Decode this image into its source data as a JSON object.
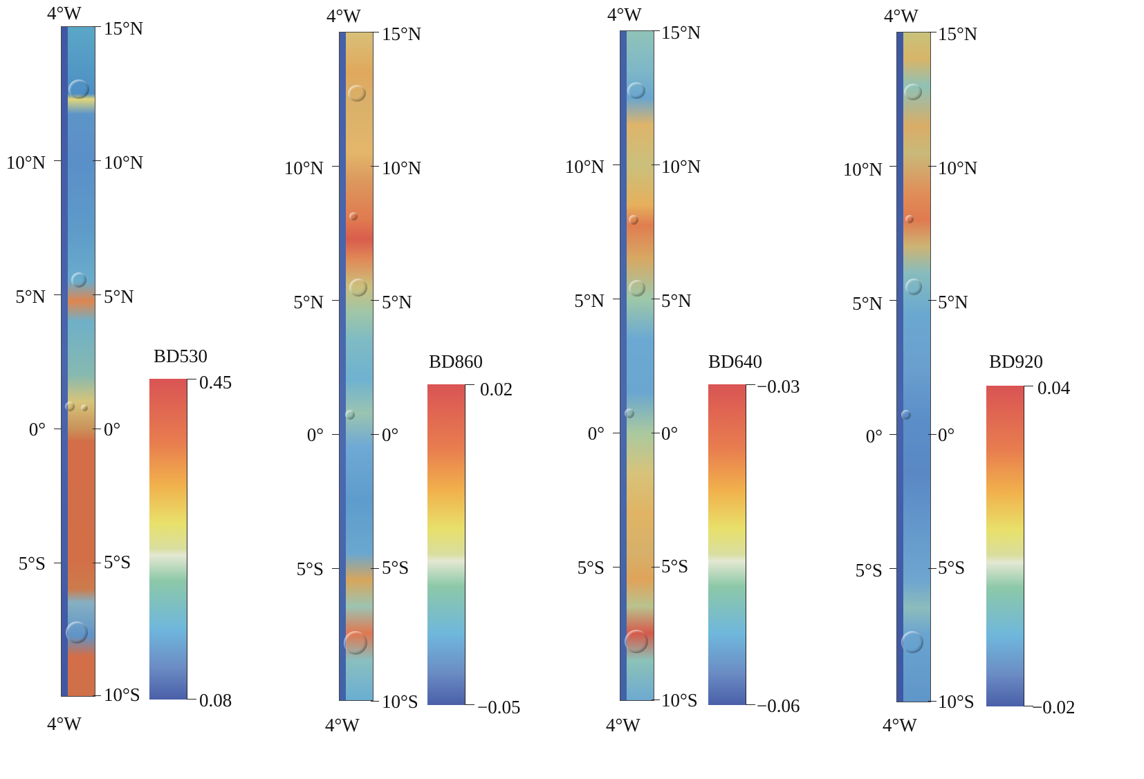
{
  "lon_label": "4°W",
  "lat_labels": [
    "15°N",
    "10°N",
    "5°N",
    "0°",
    "5°S",
    "10°S"
  ],
  "colors": {
    "scale": [
      "#4a5fa8",
      "#6b8cc4",
      "#6fb7dc",
      "#8cc8a8",
      "#dde2b8",
      "#e8e06a",
      "#f1b04c",
      "#e87d4f",
      "#d95454"
    ]
  },
  "panels": [
    {
      "name": "BD530",
      "colorbar": {
        "title": "BD530",
        "max": "0.45",
        "min": "0.08"
      },
      "left_labels": [
        "10°N",
        "5°N",
        "0°",
        "5°S"
      ],
      "right_labels": [
        "15°N",
        "10°N",
        "5°N",
        "0°",
        "5°S",
        "10°S"
      ]
    },
    {
      "name": "BD860",
      "colorbar": {
        "title": "BD860",
        "max": "0.02",
        "min": "−0.05"
      },
      "left_labels": [
        "10°N",
        "5°N",
        "0°",
        "5°S"
      ],
      "right_labels": [
        "15°N",
        "10°N",
        "5°N",
        "0°",
        "5°S",
        "10°S"
      ]
    },
    {
      "name": "BD640",
      "colorbar": {
        "title": "BD640",
        "max": "−0.03",
        "min": "−0.06"
      },
      "left_labels": [
        "10°N",
        "5°N",
        "0°",
        "5°S"
      ],
      "right_labels": [
        "15°N",
        "10°N",
        "5°N",
        "0°",
        "5°S",
        "10°S"
      ]
    },
    {
      "name": "BD920",
      "colorbar": {
        "title": "BD920",
        "max": "0.04",
        "min": "−0.02"
      },
      "left_labels": [
        "10°N",
        "5°N",
        "0°",
        "5°S"
      ],
      "right_labels": [
        "15°N",
        "10°N",
        "5°N",
        "0°",
        "5°S",
        "10°S"
      ]
    }
  ]
}
